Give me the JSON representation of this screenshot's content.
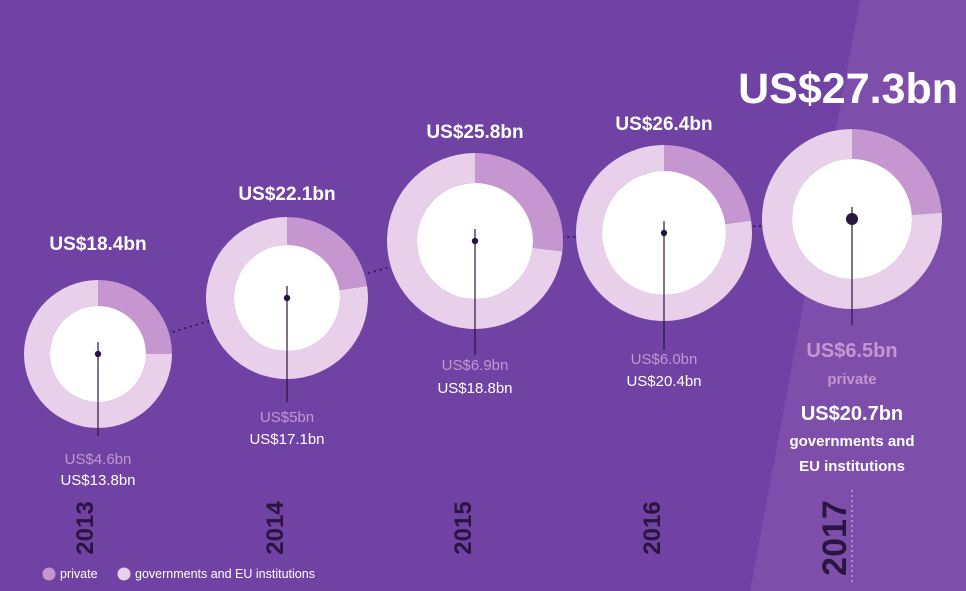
{
  "chart_data": {
    "type": "donut",
    "title": "",
    "xlabel": "",
    "ylabel": "",
    "series_labels": {
      "private": "private",
      "gov": "governments and EU institutions"
    },
    "points": [
      {
        "year": "2013",
        "total": "US$18.4bn",
        "private": "US$4.6bn",
        "gov": "US$13.8bn",
        "total_value": 18.4,
        "private_value": 4.6,
        "gov_value": 13.8
      },
      {
        "year": "2014",
        "total": "US$22.1bn",
        "private": "US$5bn",
        "gov": "US$17.1bn",
        "total_value": 22.1,
        "private_value": 5.0,
        "gov_value": 17.1
      },
      {
        "year": "2015",
        "total": "US$25.8bn",
        "private": "US$6.9bn",
        "gov": "US$18.8bn",
        "total_value": 25.8,
        "private_value": 6.9,
        "gov_value": 18.8
      },
      {
        "year": "2016",
        "total": "US$26.4bn",
        "private": "US$6.0bn",
        "gov": "US$20.4bn",
        "total_value": 26.4,
        "private_value": 6.0,
        "gov_value": 20.4
      },
      {
        "year": "2017",
        "total": "US$27.3bn",
        "private": "US$6.5bn",
        "gov": "US$20.7bn",
        "total_value": 27.3,
        "private_value": 6.5,
        "gov_value": 20.7
      }
    ],
    "final_labels": {
      "private": "private",
      "gov_line1": "governments and",
      "gov_line2": "EU institutions"
    },
    "legend": [
      {
        "label": "private",
        "color": "#c596cf"
      },
      {
        "label": "governments and EU institutions",
        "color": "#e8d0ea"
      }
    ],
    "colors": {
      "background": "#6f42a3",
      "accent_panel": "#7d4faa",
      "private": "#c596cf",
      "gov": "#e8d0ea",
      "center": "#ffffff",
      "dot": "#2a1540",
      "value_private": "#c596cf",
      "value_gov": "#ffffff"
    }
  }
}
